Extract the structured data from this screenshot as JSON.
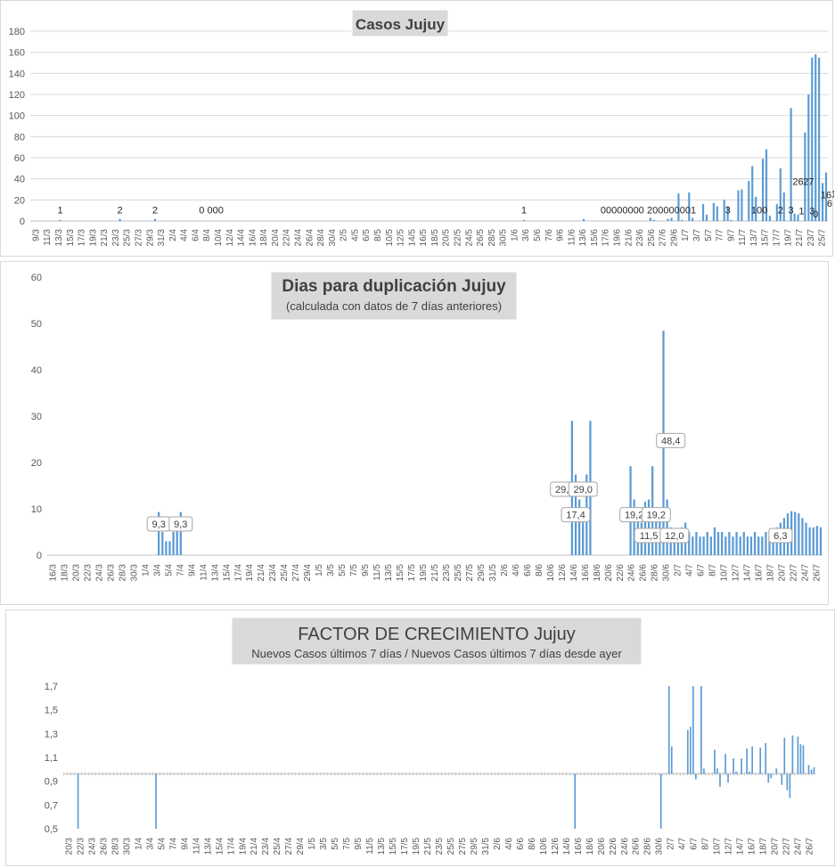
{
  "colors": {
    "bar": "#5b9bd5",
    "grid": "#d9d9d9",
    "axis_text": "#595959",
    "title_box": "#d9d9d9"
  },
  "chart_data": [
    {
      "type": "bar",
      "title": "Casos Jujuy",
      "subtitle": "",
      "xlabel": "",
      "ylabel": "",
      "ylim": [
        0,
        180
      ],
      "yticks": [
        "0",
        "20",
        "40",
        "60",
        "80",
        "100",
        "120",
        "140",
        "160",
        "180"
      ],
      "x_tick_labels": [
        "9/3",
        "11/3",
        "13/3",
        "15/3",
        "17/3",
        "19/3",
        "21/3",
        "23/3",
        "25/3",
        "27/3",
        "29/3",
        "31/3",
        "2/4",
        "4/4",
        "6/4",
        "8/4",
        "10/4",
        "12/4",
        "14/4",
        "16/4",
        "18/4",
        "20/4",
        "22/4",
        "24/4",
        "26/4",
        "28/4",
        "30/4",
        "2/5",
        "4/5",
        "6/5",
        "8/5",
        "10/5",
        "12/5",
        "14/5",
        "16/5",
        "18/5",
        "20/5",
        "22/5",
        "24/5",
        "26/5",
        "28/5",
        "30/5",
        "1/6",
        "3/6",
        "5/6",
        "7/6",
        "9/6",
        "11/6",
        "13/6",
        "15/6",
        "17/6",
        "19/6",
        "21/6",
        "23/6",
        "25/6",
        "27/6",
        "29/6",
        "1/7",
        "3/7",
        "5/7",
        "7/7",
        "9/7",
        "11/7",
        "13/7",
        "15/7",
        "17/7",
        "19/7",
        "21/7",
        "23/7",
        "25/7"
      ],
      "value_labels": [
        "1",
        "2",
        "2",
        "0 000",
        "1",
        "00000000",
        "200000001",
        "3",
        "100",
        "2",
        "3",
        "26",
        "1",
        "27",
        "3",
        "0",
        "16",
        "6",
        "17",
        "14",
        "20",
        "14",
        "1",
        "29",
        "30",
        "38",
        "52",
        "23",
        "59",
        "68",
        "5",
        "16",
        "50",
        "27",
        "107",
        "7",
        "6",
        "84",
        "120",
        "155",
        "36",
        "46"
      ],
      "series": [
        {
          "values": [
            0,
            0,
            0,
            0,
            0,
            0,
            0,
            0,
            1,
            0,
            0,
            0,
            0,
            0,
            0,
            0,
            0,
            0,
            0,
            0,
            0,
            0,
            0,
            0,
            0,
            2,
            0,
            0,
            0,
            0,
            0,
            0,
            0,
            0,
            0,
            2,
            0,
            0,
            0,
            0,
            0,
            0,
            0,
            0,
            0,
            0,
            0,
            0,
            0,
            0,
            0,
            0,
            0,
            0,
            0,
            0,
            0,
            0,
            0,
            0,
            0,
            0,
            0,
            0,
            0,
            0,
            0,
            0,
            0,
            0,
            0,
            0,
            0,
            0,
            0,
            0,
            0,
            0,
            0,
            0,
            0,
            0,
            0,
            0,
            0,
            0,
            0,
            0,
            0,
            0,
            0,
            0,
            0,
            0,
            0,
            0,
            0,
            0,
            0,
            0,
            0,
            0,
            0,
            0,
            0,
            0,
            0,
            0,
            0,
            0,
            0,
            0,
            0,
            0,
            0,
            0,
            0,
            0,
            0,
            0,
            0,
            0,
            0,
            0,
            0,
            0,
            0,
            0,
            0,
            0,
            0,
            0,
            0,
            0,
            0,
            0,
            0,
            0,
            0,
            0,
            1,
            0,
            0,
            0,
            0,
            0,
            0,
            0,
            0,
            0,
            0,
            0,
            0,
            0,
            0,
            0,
            0,
            2,
            0,
            0,
            0,
            0,
            0,
            0,
            0,
            0,
            0,
            0,
            0,
            0,
            0,
            0,
            0,
            0,
            0,
            0,
            3,
            1,
            0,
            0,
            0,
            2,
            3,
            0,
            26,
            1,
            0,
            27,
            3,
            0,
            0,
            16,
            6,
            0,
            17,
            14,
            0,
            20,
            14,
            1,
            0,
            29,
            30,
            0,
            38,
            52,
            23,
            0,
            59,
            68,
            5,
            0,
            16,
            50,
            27,
            0,
            107,
            7,
            6,
            0,
            84,
            120,
            155,
            158,
            155,
            36,
            46
          ]
        }
      ]
    },
    {
      "type": "bar",
      "title": "Dias para duplicación Jujuy",
      "subtitle": "(calculada con datos de 7 días anteriores)",
      "xlabel": "",
      "ylabel": "",
      "ylim": [
        0,
        60
      ],
      "yticks": [
        "0",
        "10",
        "20",
        "30",
        "40",
        "50",
        "60"
      ],
      "x_tick_labels": [
        "16/3",
        "18/3",
        "20/3",
        "22/3",
        "24/3",
        "26/3",
        "28/3",
        "30/3",
        "1/4",
        "3/4",
        "5/4",
        "7/4",
        "9/4",
        "11/4",
        "13/4",
        "15/4",
        "17/4",
        "19/4",
        "21/4",
        "23/4",
        "25/4",
        "27/4",
        "29/4",
        "1/5",
        "3/5",
        "5/5",
        "7/5",
        "9/5",
        "11/5",
        "13/5",
        "15/5",
        "17/5",
        "19/5",
        "21/5",
        "23/5",
        "25/5",
        "27/5",
        "29/5",
        "31/5",
        "2/6",
        "4/6",
        "6/6",
        "8/6",
        "10/6",
        "12/6",
        "14/6",
        "16/6",
        "18/6",
        "20/6",
        "22/6",
        "24/6",
        "26/6",
        "28/6",
        "30/6",
        "2/7",
        "4/7",
        "6/7",
        "8/7",
        "10/7",
        "12/7",
        "14/7",
        "16/7",
        "18/7",
        "20/7",
        "22/7",
        "24/7",
        "26/7"
      ],
      "value_labels": [
        "9,3",
        "9,3",
        "29,0",
        "29,0",
        "17,4",
        "19,2",
        "19,2",
        "11,5",
        "48,4",
        "12,0",
        "6,3"
      ],
      "series": [
        {
          "values": [
            0,
            0,
            0,
            0,
            0,
            0,
            0,
            0,
            0,
            0,
            0,
            0,
            0,
            0,
            0,
            0,
            0,
            0,
            0,
            0,
            0,
            0,
            0,
            0,
            0,
            0,
            0,
            0,
            0,
            0,
            9.3,
            5,
            3,
            3,
            5,
            6,
            9.3,
            0,
            0,
            0,
            0,
            0,
            0,
            0,
            0,
            0,
            0,
            0,
            0,
            0,
            0,
            0,
            0,
            0,
            0,
            0,
            0,
            0,
            0,
            0,
            0,
            0,
            0,
            0,
            0,
            0,
            0,
            0,
            0,
            0,
            0,
            0,
            0,
            0,
            0,
            0,
            0,
            0,
            0,
            0,
            0,
            0,
            0,
            0,
            0,
            0,
            0,
            0,
            0,
            0,
            0,
            0,
            0,
            0,
            0,
            0,
            0,
            0,
            0,
            0,
            0,
            0,
            0,
            0,
            0,
            0,
            0,
            0,
            0,
            0,
            0,
            0,
            0,
            0,
            0,
            0,
            0,
            0,
            0,
            0,
            0,
            0,
            0,
            0,
            0,
            0,
            0,
            0,
            0,
            0,
            0,
            0,
            0,
            0,
            0,
            0,
            0,
            0,
            0,
            0,
            0,
            0,
            0,
            29,
            17.4,
            12,
            10,
            17.4,
            29,
            0,
            0,
            0,
            0,
            0,
            0,
            0,
            0,
            0,
            0,
            19.2,
            12,
            8,
            7,
            11.5,
            12,
            19.2,
            10,
            8,
            48.4,
            12,
            6,
            4,
            5,
            6,
            7,
            5,
            4,
            5,
            4,
            4,
            5,
            4,
            6,
            5,
            5,
            4,
            5,
            4,
            5,
            4,
            5,
            4,
            4,
            5,
            4,
            4,
            5,
            4,
            5,
            6,
            7,
            8,
            9,
            9.5,
            9.3,
            9,
            8,
            7,
            6,
            6,
            6.3,
            6
          ]
        }
      ]
    },
    {
      "type": "bar",
      "title": "FACTOR DE CRECIMIENTO Jujuy",
      "subtitle": "Nuevos Casos últimos 7 días / Nuevos Casos últimos 7 días desde ayer",
      "xlabel": "",
      "ylabel": "",
      "ylim": [
        0.5,
        1.8
      ],
      "baseline": 1.0,
      "yticks": [
        "0,5",
        "0,7",
        "0,9",
        "1,1",
        "1,3",
        "1,5",
        "1,7"
      ],
      "x_tick_labels": [
        "20/3",
        "22/3",
        "24/3",
        "26/3",
        "28/3",
        "30/3",
        "1/4",
        "3/4",
        "5/4",
        "7/4",
        "9/4",
        "11/4",
        "13/4",
        "15/4",
        "17/4",
        "19/4",
        "21/4",
        "23/4",
        "25/4",
        "27/4",
        "29/4",
        "1/5",
        "3/5",
        "5/5",
        "7/5",
        "9/5",
        "11/5",
        "13/5",
        "15/5",
        "17/5",
        "19/5",
        "21/5",
        "23/5",
        "25/5",
        "27/5",
        "29/5",
        "31/5",
        "2/6",
        "4/6",
        "6/6",
        "8/6",
        "10/6",
        "12/6",
        "14/6",
        "16/6",
        "18/6",
        "20/6",
        "22/6",
        "24/6",
        "26/6",
        "28/6",
        "30/6",
        "2/7",
        "4/7",
        "6/7",
        "8/7",
        "10/7",
        "12/7",
        "14/7",
        "16/7",
        "18/7",
        "20/7",
        "22/7",
        "24/7",
        "26/7"
      ],
      "value_labels": [],
      "series": [
        {
          "values": [
            1,
            1,
            1,
            1,
            1,
            0.5,
            1,
            1,
            1,
            1,
            1,
            1,
            1,
            1,
            1,
            1,
            1,
            1,
            1,
            1,
            1,
            1,
            1,
            1,
            1,
            1,
            1,
            1,
            1,
            1,
            1,
            1,
            1,
            1,
            0.5,
            1,
            1,
            1,
            1,
            1,
            1,
            1,
            1,
            1,
            1,
            1,
            1,
            1,
            1,
            1,
            1,
            1,
            1,
            1,
            1,
            1,
            1,
            1,
            1,
            1,
            1,
            1,
            1,
            1,
            1,
            1,
            1,
            1,
            1,
            1,
            1,
            1,
            1,
            1,
            1,
            1,
            1,
            1,
            1,
            1,
            1,
            1,
            1,
            1,
            1,
            1,
            1,
            1,
            1,
            1,
            1,
            1,
            1,
            1,
            1,
            1,
            1,
            1,
            1,
            1,
            1,
            1,
            1,
            1,
            1,
            1,
            1,
            1,
            1,
            1,
            1,
            1,
            1,
            1,
            1,
            1,
            1,
            1,
            1,
            1,
            1,
            1,
            1,
            1,
            1,
            1,
            1,
            1,
            1,
            1,
            1,
            1,
            1,
            1,
            1,
            1,
            1,
            1,
            1,
            1,
            1,
            1,
            1,
            1,
            1,
            1,
            1,
            1,
            1,
            1,
            1,
            1,
            1,
            1,
            1,
            1,
            1,
            1,
            1,
            1,
            1,
            1,
            1,
            1,
            1,
            1,
            1,
            1,
            1,
            1,
            1,
            1,
            1,
            1,
            1,
            1,
            1,
            1,
            1,
            1,
            1,
            1,
            1,
            1,
            1,
            1,
            1,
            1,
            1,
            1,
            0.5,
            1,
            1,
            1,
            1,
            1,
            1,
            1,
            1,
            1,
            1,
            1,
            1,
            1,
            1,
            1,
            1,
            1,
            1,
            1,
            1,
            1,
            1,
            1,
            1,
            1,
            1,
            1,
            1,
            1,
            1,
            1,
            0.5,
            1,
            1,
            1.8,
            1.25,
            1,
            1,
            1,
            1,
            1,
            1.4,
            1.43,
            1.8,
            0.95,
            1,
            1.8,
            1.05,
            1,
            1,
            1,
            1.22,
            1.05,
            0.88,
            1,
            1.18,
            0.92,
            1,
            1.14,
            1.02,
            1,
            1.14,
            1,
            1.23,
            1.02,
            1.25,
            1,
            1,
            1.24,
            1,
            1.28,
            0.92,
            0.96,
            1,
            1.05,
            1,
            0.9,
            1.33,
            0.85,
            0.78,
            1.35,
            1,
            1.34,
            1.27,
            1.26,
            1,
            1.08,
            1.04,
            1.06
          ]
        }
      ]
    }
  ]
}
